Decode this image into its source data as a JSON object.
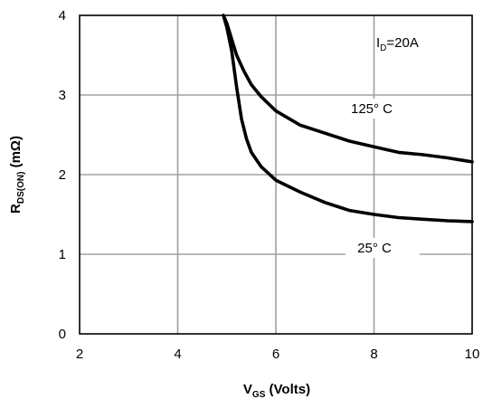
{
  "chart_data": {
    "type": "line",
    "title": "",
    "xlabel": {
      "main": "V",
      "sub": "GS",
      "rest": " (Volts)"
    },
    "ylabel": {
      "main": "R",
      "sub": "DS(ON)",
      "rest": " (mΩ)"
    },
    "xlim": [
      2,
      10
    ],
    "ylim": [
      0,
      4
    ],
    "xticks": [
      2,
      4,
      6,
      8,
      10
    ],
    "yticks": [
      0,
      1,
      2,
      3,
      4
    ],
    "grid": true,
    "condition": {
      "main": "I",
      "sub": "D",
      "rest": "=20A"
    },
    "series": [
      {
        "name": "125° C",
        "x": [
          4.93,
          5.0,
          5.1,
          5.2,
          5.35,
          5.5,
          5.7,
          6.0,
          6.5,
          7.0,
          7.5,
          8.0,
          8.5,
          9.0,
          9.5,
          10.0
        ],
        "y": [
          4.0,
          3.9,
          3.7,
          3.5,
          3.3,
          3.13,
          2.98,
          2.8,
          2.62,
          2.52,
          2.42,
          2.35,
          2.28,
          2.25,
          2.21,
          2.16
        ]
      },
      {
        "name": "25° C",
        "x": [
          4.93,
          5.0,
          5.1,
          5.2,
          5.3,
          5.4,
          5.5,
          5.7,
          6.0,
          6.5,
          7.0,
          7.5,
          8.0,
          8.5,
          9.0,
          9.5,
          10.0
        ],
        "y": [
          4.0,
          3.85,
          3.55,
          3.1,
          2.7,
          2.45,
          2.28,
          2.1,
          1.93,
          1.78,
          1.65,
          1.55,
          1.5,
          1.46,
          1.44,
          1.42,
          1.41
        ]
      }
    ]
  }
}
